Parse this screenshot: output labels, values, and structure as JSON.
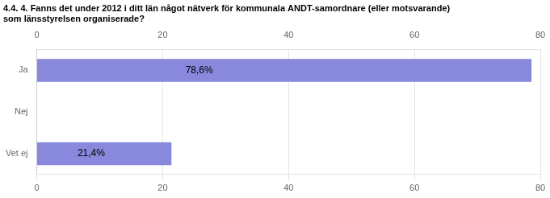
{
  "chart_data": {
    "type": "bar",
    "orientation": "horizontal",
    "title": "4.4. 4. Fanns det under 2012 i ditt län något nätverk för kommunala ANDT-samordnare (eller motsvarande)\nsom länsstyrelsen organiserade?",
    "categories": [
      "Ja",
      "Nej",
      "Vet ej"
    ],
    "values": [
      78.6,
      0.0,
      21.4
    ],
    "value_labels": [
      "78,6%",
      null,
      "21,4%"
    ],
    "data_labels": true,
    "color": "#8888dd",
    "xlim": [
      0,
      80
    ],
    "xticks": [
      0,
      20,
      40,
      60,
      80
    ],
    "grid": true
  }
}
